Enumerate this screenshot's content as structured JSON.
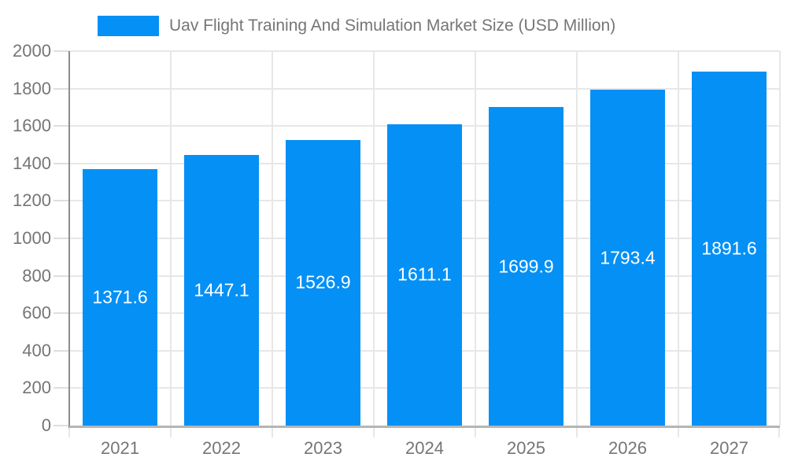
{
  "chart_data": {
    "type": "bar",
    "title": "Uav Flight Training And Simulation Market Size (USD Million)",
    "categories": [
      "2021",
      "2022",
      "2023",
      "2024",
      "2025",
      "2026",
      "2027"
    ],
    "values": [
      1371.6,
      1447.1,
      1526.9,
      1611.1,
      1699.9,
      1793.4,
      1891.6
    ],
    "value_labels": [
      "1371.6",
      "1447.1",
      "1526.9",
      "1611.1",
      "1699.9",
      "1793.4",
      "1891.6"
    ],
    "xlabel": "",
    "ylabel": "",
    "ylim": [
      0,
      2000
    ],
    "ytick_step": 200,
    "grid": true,
    "legend_position": "top",
    "colors": {
      "bar": "#0590F5",
      "title_text": "#757575",
      "axis_label": "#757575",
      "value_label": "#ffffff",
      "y_axis_line": "#8d8d8d",
      "x_axis_line": "#b5b5b5",
      "gridline": "#e7e7e7",
      "y_tick": "#dedede",
      "background": "#ffffff"
    }
  }
}
